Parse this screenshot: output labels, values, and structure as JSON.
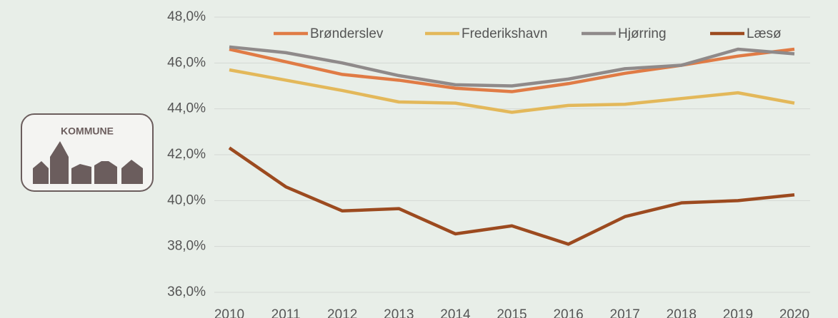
{
  "logo": {
    "text": "KOMMUNE"
  },
  "chart_data": {
    "type": "line",
    "categories": [
      "2010",
      "2011",
      "2012",
      "2013",
      "2014",
      "2015",
      "2016",
      "2017",
      "2018",
      "2019",
      "2020"
    ],
    "series": [
      {
        "name": "Brønderslev",
        "color": "#e07b45",
        "values": [
          46.6,
          46.05,
          45.5,
          45.25,
          44.9,
          44.75,
          45.1,
          45.55,
          45.9,
          46.3,
          46.6
        ]
      },
      {
        "name": "Frederikshavn",
        "color": "#e3b85a",
        "values": [
          45.7,
          45.25,
          44.8,
          44.3,
          44.25,
          43.85,
          44.15,
          44.2,
          44.45,
          44.7,
          44.25
        ]
      },
      {
        "name": "Hjørring",
        "color": "#8f8a8a",
        "values": [
          46.7,
          46.45,
          46.0,
          45.45,
          45.05,
          45.0,
          45.3,
          45.75,
          45.9,
          46.6,
          46.4
        ]
      },
      {
        "name": "Læsø",
        "color": "#9c4a1f",
        "values": [
          42.3,
          40.6,
          39.55,
          39.65,
          38.55,
          38.9,
          38.1,
          39.3,
          39.9,
          40.0,
          40.25
        ]
      }
    ],
    "ylim": [
      36,
      48
    ],
    "yticks": [
      {
        "value": 36,
        "label": "36,0%"
      },
      {
        "value": 38,
        "label": "38,0%"
      },
      {
        "value": 40,
        "label": "40,0%"
      },
      {
        "value": 42,
        "label": "42,0%"
      },
      {
        "value": 44,
        "label": "44,0%"
      },
      {
        "value": 46,
        "label": "46,0%"
      },
      {
        "value": 48,
        "label": "48,0%"
      }
    ],
    "grid": true,
    "legend": "top"
  }
}
